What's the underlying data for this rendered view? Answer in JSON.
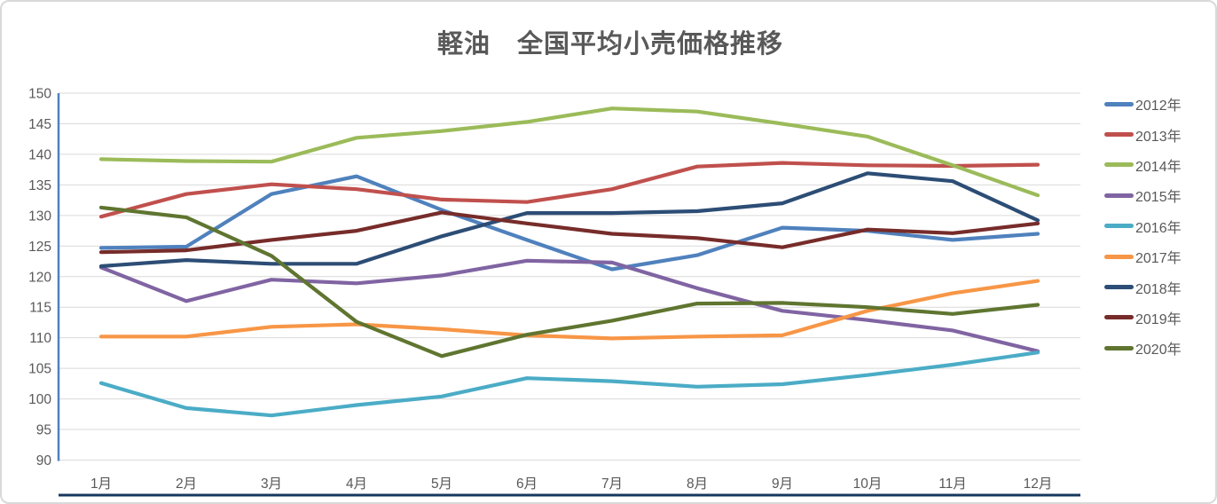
{
  "title": "軽油　全国平均小売価格推移",
  "colors": {
    "gridline": "#d9d9d9",
    "y_axis_line": "#4f81bd",
    "x_axis_line": "#17375e",
    "label_text": "#595959",
    "title_text": "#595959"
  },
  "y_axis": {
    "tick_labels": [
      "150",
      "145",
      "140",
      "135",
      "130",
      "125",
      "120",
      "115",
      "110",
      "105",
      "100",
      "95",
      "90"
    ],
    "tick_values": [
      150,
      145,
      140,
      135,
      130,
      125,
      120,
      115,
      110,
      105,
      100,
      95,
      90
    ]
  },
  "chart_data": {
    "type": "line",
    "title": "軽油　全国平均小売価格推移",
    "xlabel": "",
    "ylabel": "",
    "ylim": [
      90,
      150
    ],
    "y_tick_step": 5,
    "grid": true,
    "legend_position": "right",
    "categories": [
      "1月",
      "2月",
      "3月",
      "4月",
      "5月",
      "6月",
      "7月",
      "8月",
      "9月",
      "10月",
      "11月",
      "12月"
    ],
    "series": [
      {
        "name": "2012年",
        "color": "#4f81bd",
        "values": [
          124.7,
          124.9,
          133.5,
          136.4,
          130.9,
          126.0,
          121.2,
          123.5,
          128.0,
          127.5,
          126.0,
          127.0
        ]
      },
      {
        "name": "2013年",
        "color": "#c0504d",
        "values": [
          129.8,
          133.5,
          135.1,
          134.3,
          132.6,
          132.2,
          134.3,
          138.0,
          138.6,
          138.2,
          138.1,
          138.3
        ]
      },
      {
        "name": "2014年",
        "color": "#9bbb59",
        "values": [
          139.2,
          138.9,
          138.8,
          142.7,
          143.8,
          145.3,
          147.5,
          147.0,
          145.0,
          142.9,
          138.2,
          133.3
        ]
      },
      {
        "name": "2015年",
        "color": "#8064a2",
        "values": [
          121.5,
          116.0,
          119.5,
          118.9,
          120.2,
          122.6,
          122.3,
          118.1,
          114.4,
          112.9,
          111.2,
          107.8
        ]
      },
      {
        "name": "2016年",
        "color": "#4bacc6",
        "values": [
          102.6,
          98.5,
          97.3,
          99.0,
          100.4,
          103.4,
          102.9,
          102.0,
          102.4,
          103.9,
          105.6,
          107.6
        ]
      },
      {
        "name": "2017年",
        "color": "#f79646",
        "values": [
          110.2,
          110.2,
          111.8,
          112.2,
          111.4,
          110.4,
          109.9,
          110.2,
          110.4,
          114.4,
          117.3,
          119.3
        ]
      },
      {
        "name": "2018年",
        "color": "#2c4d75",
        "values": [
          121.7,
          122.7,
          122.1,
          122.1,
          126.6,
          130.4,
          130.4,
          130.7,
          132.0,
          136.9,
          135.6,
          129.2
        ]
      },
      {
        "name": "2019年",
        "color": "#772c2a",
        "values": [
          124.0,
          124.3,
          126.0,
          127.5,
          130.5,
          128.7,
          127.0,
          126.3,
          124.8,
          127.7,
          127.1,
          128.7
        ]
      },
      {
        "name": "2020年",
        "color": "#5f7530",
        "values": [
          131.3,
          129.7,
          123.4,
          112.6,
          107.0,
          110.5,
          112.8,
          115.6,
          115.7,
          115.0,
          113.9,
          115.4
        ]
      }
    ]
  }
}
